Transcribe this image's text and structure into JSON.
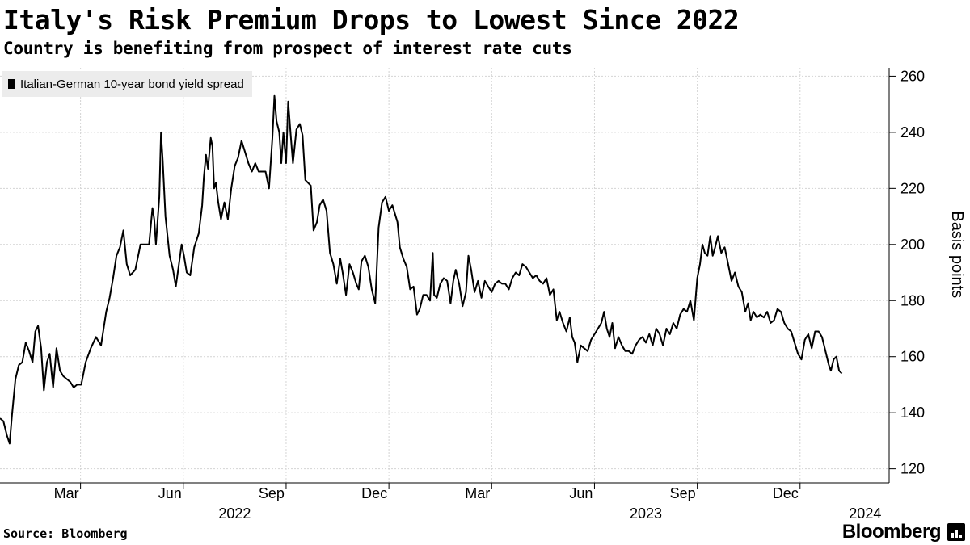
{
  "chart_data": {
    "type": "line",
    "title": "Italy's Risk Premium Drops to Lowest Since 2022",
    "subtitle": "Country is benefiting from prospect of interest rate cuts",
    "ylabel": "Basis points",
    "ylim": [
      115,
      263
    ],
    "y_ticks": [
      120,
      140,
      160,
      180,
      200,
      220,
      240,
      260
    ],
    "month_ticks": [
      {
        "label": "Mar",
        "t": 1.1
      },
      {
        "label": "Jun",
        "t": 4.1
      },
      {
        "label": "Sep",
        "t": 7.1
      },
      {
        "label": "Dec",
        "t": 10.1
      },
      {
        "label": "Mar",
        "t": 13.1
      },
      {
        "label": "Jun",
        "t": 16.1
      },
      {
        "label": "Sep",
        "t": 19.1
      },
      {
        "label": "Dec",
        "t": 22.1
      }
    ],
    "year_labels": [
      {
        "label": "2022",
        "t": 5.6
      },
      {
        "label": "2023",
        "t": 17.6
      },
      {
        "label": "2024",
        "t": 24.0
      }
    ],
    "xlim": [
      -1.25,
      24.7
    ],
    "series": [
      {
        "name": "Italian-German 10-year bond yield spread",
        "points": [
          [
            -1.25,
            138
          ],
          [
            -1.15,
            137
          ],
          [
            -1.05,
            132
          ],
          [
            -0.97,
            129
          ],
          [
            -0.9,
            139
          ],
          [
            -0.8,
            152
          ],
          [
            -0.7,
            157
          ],
          [
            -0.6,
            158
          ],
          [
            -0.5,
            165
          ],
          [
            -0.4,
            162
          ],
          [
            -0.3,
            158
          ],
          [
            -0.22,
            169
          ],
          [
            -0.14,
            171
          ],
          [
            -0.05,
            163
          ],
          [
            0.03,
            148
          ],
          [
            0.12,
            158
          ],
          [
            0.2,
            161
          ],
          [
            0.3,
            149
          ],
          [
            0.4,
            163
          ],
          [
            0.5,
            155
          ],
          [
            0.6,
            153
          ],
          [
            0.7,
            152
          ],
          [
            0.8,
            151
          ],
          [
            0.9,
            149
          ],
          [
            1.0,
            150
          ],
          [
            1.12,
            150
          ],
          [
            1.25,
            158
          ],
          [
            1.4,
            163
          ],
          [
            1.55,
            167
          ],
          [
            1.7,
            164
          ],
          [
            1.85,
            176
          ],
          [
            1.95,
            181
          ],
          [
            2.05,
            188
          ],
          [
            2.15,
            196
          ],
          [
            2.25,
            199
          ],
          [
            2.35,
            205
          ],
          [
            2.45,
            193
          ],
          [
            2.55,
            189
          ],
          [
            2.7,
            191
          ],
          [
            2.85,
            200
          ],
          [
            3.0,
            200
          ],
          [
            3.1,
            200
          ],
          [
            3.2,
            213
          ],
          [
            3.25,
            209
          ],
          [
            3.3,
            200
          ],
          [
            3.4,
            217
          ],
          [
            3.45,
            240
          ],
          [
            3.5,
            230
          ],
          [
            3.58,
            210
          ],
          [
            3.7,
            196
          ],
          [
            3.8,
            191
          ],
          [
            3.88,
            185
          ],
          [
            3.95,
            191
          ],
          [
            4.05,
            200
          ],
          [
            4.12,
            196
          ],
          [
            4.2,
            190
          ],
          [
            4.3,
            189
          ],
          [
            4.42,
            199
          ],
          [
            4.55,
            204
          ],
          [
            4.65,
            214
          ],
          [
            4.7,
            224
          ],
          [
            4.76,
            232
          ],
          [
            4.82,
            227
          ],
          [
            4.9,
            238
          ],
          [
            4.95,
            235
          ],
          [
            5.0,
            220
          ],
          [
            5.05,
            222
          ],
          [
            5.12,
            215
          ],
          [
            5.2,
            209
          ],
          [
            5.3,
            215
          ],
          [
            5.4,
            209
          ],
          [
            5.5,
            220
          ],
          [
            5.6,
            228
          ],
          [
            5.7,
            231
          ],
          [
            5.8,
            237
          ],
          [
            5.9,
            233
          ],
          [
            6.0,
            229
          ],
          [
            6.1,
            226
          ],
          [
            6.2,
            229
          ],
          [
            6.3,
            226
          ],
          [
            6.4,
            226
          ],
          [
            6.5,
            226
          ],
          [
            6.6,
            220
          ],
          [
            6.7,
            238
          ],
          [
            6.76,
            253
          ],
          [
            6.82,
            244
          ],
          [
            6.9,
            240
          ],
          [
            6.96,
            229
          ],
          [
            7.02,
            240
          ],
          [
            7.1,
            229
          ],
          [
            7.16,
            251
          ],
          [
            7.24,
            238
          ],
          [
            7.3,
            229
          ],
          [
            7.4,
            241
          ],
          [
            7.5,
            243
          ],
          [
            7.58,
            239
          ],
          [
            7.66,
            223
          ],
          [
            7.74,
            222
          ],
          [
            7.82,
            221
          ],
          [
            7.9,
            205
          ],
          [
            8.0,
            208
          ],
          [
            8.08,
            214
          ],
          [
            8.18,
            216
          ],
          [
            8.28,
            212
          ],
          [
            8.38,
            197
          ],
          [
            8.48,
            193
          ],
          [
            8.58,
            186
          ],
          [
            8.68,
            195
          ],
          [
            8.75,
            190
          ],
          [
            8.85,
            182
          ],
          [
            8.95,
            193
          ],
          [
            9.05,
            190
          ],
          [
            9.15,
            186
          ],
          [
            9.22,
            184
          ],
          [
            9.3,
            194
          ],
          [
            9.4,
            196
          ],
          [
            9.5,
            192
          ],
          [
            9.6,
            184
          ],
          [
            9.7,
            179
          ],
          [
            9.8,
            206
          ],
          [
            9.9,
            215
          ],
          [
            10.0,
            217
          ],
          [
            10.1,
            212
          ],
          [
            10.2,
            214
          ],
          [
            10.3,
            210
          ],
          [
            10.35,
            208
          ],
          [
            10.42,
            199
          ],
          [
            10.52,
            195
          ],
          [
            10.62,
            192
          ],
          [
            10.72,
            184
          ],
          [
            10.82,
            185
          ],
          [
            10.92,
            175
          ],
          [
            11.0,
            177
          ],
          [
            11.1,
            182
          ],
          [
            11.2,
            182
          ],
          [
            11.3,
            180
          ],
          [
            11.38,
            197
          ],
          [
            11.42,
            182
          ],
          [
            11.5,
            181
          ],
          [
            11.6,
            186
          ],
          [
            11.7,
            188
          ],
          [
            11.8,
            187
          ],
          [
            11.9,
            179
          ],
          [
            11.98,
            187
          ],
          [
            12.05,
            191
          ],
          [
            12.15,
            186
          ],
          [
            12.25,
            178
          ],
          [
            12.35,
            183
          ],
          [
            12.42,
            196
          ],
          [
            12.5,
            191
          ],
          [
            12.6,
            183
          ],
          [
            12.7,
            187
          ],
          [
            12.8,
            181
          ],
          [
            12.9,
            187
          ],
          [
            13.0,
            185
          ],
          [
            13.1,
            183
          ],
          [
            13.2,
            186
          ],
          [
            13.3,
            187
          ],
          [
            13.4,
            186
          ],
          [
            13.5,
            186
          ],
          [
            13.6,
            184
          ],
          [
            13.7,
            188
          ],
          [
            13.8,
            190
          ],
          [
            13.9,
            189
          ],
          [
            14.0,
            193
          ],
          [
            14.1,
            192
          ],
          [
            14.2,
            190
          ],
          [
            14.3,
            188
          ],
          [
            14.4,
            189
          ],
          [
            14.5,
            187
          ],
          [
            14.6,
            186
          ],
          [
            14.7,
            188
          ],
          [
            14.8,
            182
          ],
          [
            14.9,
            184
          ],
          [
            15.0,
            173
          ],
          [
            15.08,
            176
          ],
          [
            15.18,
            172
          ],
          [
            15.28,
            169
          ],
          [
            15.38,
            174
          ],
          [
            15.45,
            167
          ],
          [
            15.52,
            165
          ],
          [
            15.6,
            158
          ],
          [
            15.7,
            164
          ],
          [
            15.8,
            163
          ],
          [
            15.9,
            162
          ],
          [
            16.0,
            166
          ],
          [
            16.1,
            168
          ],
          [
            16.2,
            170
          ],
          [
            16.3,
            172
          ],
          [
            16.38,
            176
          ],
          [
            16.46,
            170
          ],
          [
            16.54,
            167
          ],
          [
            16.62,
            172
          ],
          [
            16.7,
            163
          ],
          [
            16.8,
            167
          ],
          [
            16.9,
            164
          ],
          [
            17.0,
            162
          ],
          [
            17.1,
            162
          ],
          [
            17.2,
            161
          ],
          [
            17.3,
            164
          ],
          [
            17.4,
            166
          ],
          [
            17.5,
            167
          ],
          [
            17.6,
            165
          ],
          [
            17.7,
            168
          ],
          [
            17.8,
            164
          ],
          [
            17.9,
            170
          ],
          [
            18.0,
            168
          ],
          [
            18.1,
            164
          ],
          [
            18.2,
            170
          ],
          [
            18.3,
            168
          ],
          [
            18.4,
            172
          ],
          [
            18.5,
            170
          ],
          [
            18.6,
            175
          ],
          [
            18.7,
            177
          ],
          [
            18.8,
            176
          ],
          [
            18.9,
            180
          ],
          [
            19.0,
            173
          ],
          [
            19.1,
            188
          ],
          [
            19.18,
            193
          ],
          [
            19.25,
            200
          ],
          [
            19.32,
            197
          ],
          [
            19.4,
            196
          ],
          [
            19.48,
            203
          ],
          [
            19.55,
            196
          ],
          [
            19.62,
            199
          ],
          [
            19.7,
            203
          ],
          [
            19.8,
            197
          ],
          [
            19.9,
            199
          ],
          [
            20.0,
            193
          ],
          [
            20.1,
            187
          ],
          [
            20.2,
            190
          ],
          [
            20.3,
            185
          ],
          [
            20.4,
            183
          ],
          [
            20.5,
            176
          ],
          [
            20.58,
            179
          ],
          [
            20.66,
            173
          ],
          [
            20.74,
            176
          ],
          [
            20.84,
            174
          ],
          [
            20.94,
            175
          ],
          [
            21.04,
            174
          ],
          [
            21.14,
            176
          ],
          [
            21.24,
            172
          ],
          [
            21.34,
            173
          ],
          [
            21.44,
            177
          ],
          [
            21.54,
            176
          ],
          [
            21.64,
            172
          ],
          [
            21.74,
            170
          ],
          [
            21.84,
            169
          ],
          [
            21.94,
            165
          ],
          [
            22.04,
            161
          ],
          [
            22.14,
            159
          ],
          [
            22.24,
            166
          ],
          [
            22.34,
            168
          ],
          [
            22.44,
            163
          ],
          [
            22.54,
            169
          ],
          [
            22.64,
            169
          ],
          [
            22.74,
            167
          ],
          [
            22.84,
            162
          ],
          [
            22.94,
            157
          ],
          [
            23.0,
            155
          ],
          [
            23.08,
            159
          ],
          [
            23.16,
            160
          ],
          [
            23.24,
            155
          ],
          [
            23.32,
            154
          ]
        ]
      }
    ],
    "source": "Source: Bloomberg",
    "brand": "Bloomberg"
  },
  "legend": {
    "label": "Italian-German 10-year bond yield spread"
  },
  "footer": {
    "source": "Source: Bloomberg",
    "brand": "Bloomberg"
  },
  "colors": {
    "line": "#000000",
    "grid": "#d4d4d4",
    "legend_bg": "#ececec"
  }
}
